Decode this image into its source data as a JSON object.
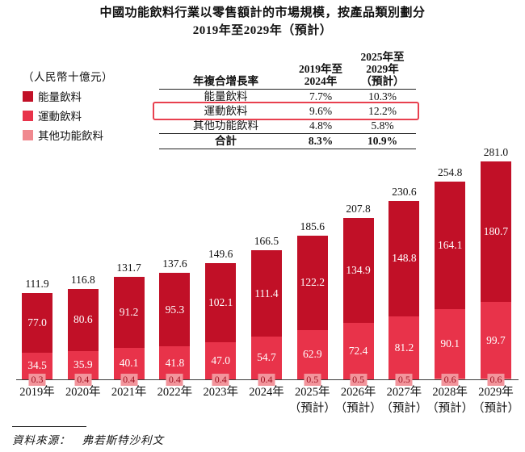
{
  "title": {
    "line1": "中國功能飲料行業以零售額計的市場規模，按產品類別劃分",
    "line2": "2019年至2029年（預計）"
  },
  "unit_label": "（人民幣十億元）",
  "legend": {
    "items": [
      {
        "label": "能量飲料",
        "color": "#c11027"
      },
      {
        "label": "運動飲料",
        "color": "#e8334a"
      },
      {
        "label": "其他功能飲料",
        "color": "#f0898f"
      }
    ]
  },
  "cagr_table": {
    "col_header_label": "年複合增長率",
    "col1_lines": [
      "2019年至",
      "2024年"
    ],
    "col2_lines": [
      "2025年至",
      "2029年",
      "（預計）"
    ],
    "rows": [
      {
        "label": "能量飲料",
        "p1": "7.7%",
        "p2": "10.3%"
      },
      {
        "label": "運動飲料",
        "p1": "9.6%",
        "p2": "12.2%"
      },
      {
        "label": "其他功能飲料",
        "p1": "4.8%",
        "p2": "5.8%"
      }
    ],
    "highlight_row_index": 1,
    "highlight_color": "#e8404f",
    "total": {
      "label": "合計",
      "p1": "8.3%",
      "p2": "10.9%"
    }
  },
  "chart_data": {
    "type": "bar",
    "stacked": true,
    "title": "中國功能飲料行業以零售額計的市場規模，按產品類別劃分 2019年至2029年（預計）",
    "ylabel": "人民幣十億元",
    "ylim": [
      0,
      290
    ],
    "grid": false,
    "legend_position": "upper-left",
    "categories": [
      "2019年",
      "2020年",
      "2021年",
      "2022年",
      "2023年",
      "2024年",
      "2025年",
      "2026年",
      "2027年",
      "2028年",
      "2029年"
    ],
    "forecast_suffix": "（預計）",
    "forecast_from_index": 6,
    "series": [
      {
        "name": "能量飲料",
        "color": "#c11027",
        "values": [
          77.0,
          80.6,
          91.2,
          95.3,
          102.1,
          111.4,
          122.2,
          134.9,
          148.8,
          164.1,
          180.7
        ]
      },
      {
        "name": "運動飲料",
        "color": "#e8334a",
        "values": [
          34.5,
          35.9,
          40.1,
          41.8,
          47.0,
          54.7,
          62.9,
          72.4,
          81.2,
          90.1,
          99.7
        ]
      },
      {
        "name": "其他功能飲料",
        "color": "#f0898f",
        "values": [
          0.3,
          0.4,
          0.4,
          0.4,
          0.4,
          0.4,
          0.5,
          0.5,
          0.5,
          0.6,
          0.6
        ]
      }
    ],
    "totals": [
      111.9,
      116.8,
      131.7,
      137.6,
      149.6,
      166.5,
      185.6,
      207.8,
      230.6,
      254.8,
      281.0
    ]
  },
  "source": {
    "label": "資料來源：",
    "text": "弗若斯特沙利文"
  }
}
